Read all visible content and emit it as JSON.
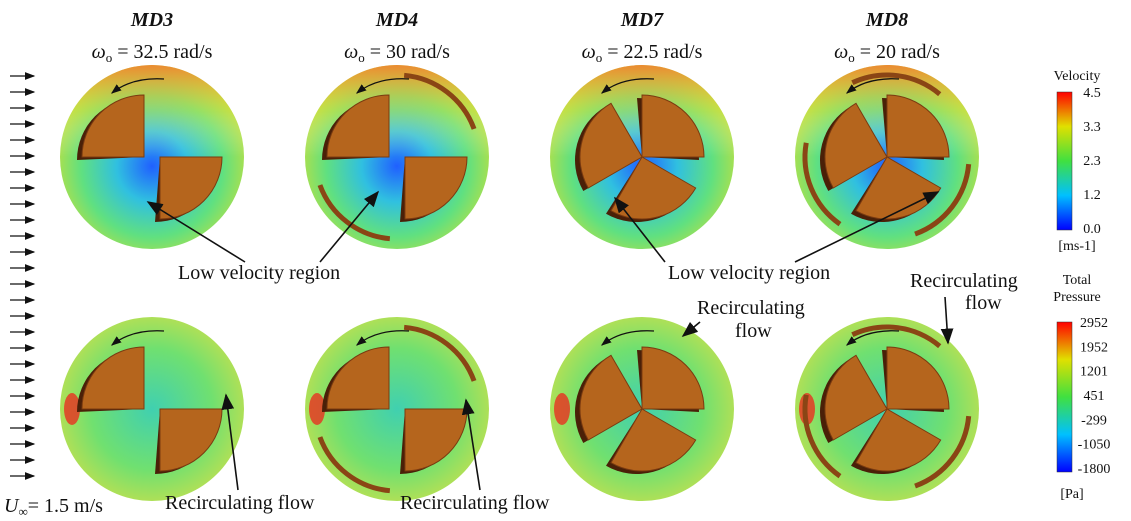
{
  "columns": [
    {
      "name": "MD3",
      "symbol": "ω",
      "subscript": "o",
      "speed": " = 32.5 rad/s"
    },
    {
      "name": "MD4",
      "symbol": "ω",
      "subscript": "o",
      "speed": " = 30 rad/s"
    },
    {
      "name": "MD7",
      "symbol": "ω",
      "subscript": "o",
      "speed": " = 22.5 rad/s"
    },
    {
      "name": "MD8",
      "symbol": "ω",
      "subscript": "o",
      "speed": " = 20 rad/s"
    }
  ],
  "inflow": {
    "symbol": "U",
    "subscript": "∞",
    "value": "= 1.5 m/s"
  },
  "annotations": {
    "low_velocity": [
      "Low velocity region",
      "Low velocity region"
    ],
    "recirc_top": [
      "Recirculating",
      "flow"
    ],
    "recirc_md7": [
      "Recirculating",
      "flow"
    ],
    "recirc_bottom": [
      "Recirculating flow",
      "Recirculating flow"
    ]
  },
  "velocity_legend": {
    "title": "Velocity",
    "ticks": [
      "4.5",
      "3.3",
      "2.3",
      "1.2",
      "0.0"
    ],
    "unit": "[ms-1]"
  },
  "pressure_legend": {
    "title": [
      "Total",
      "Pressure"
    ],
    "ticks": [
      "2952",
      "1952",
      "1201",
      "451",
      "-299",
      "-1050",
      "-1800"
    ],
    "unit": "[Pa]"
  }
}
